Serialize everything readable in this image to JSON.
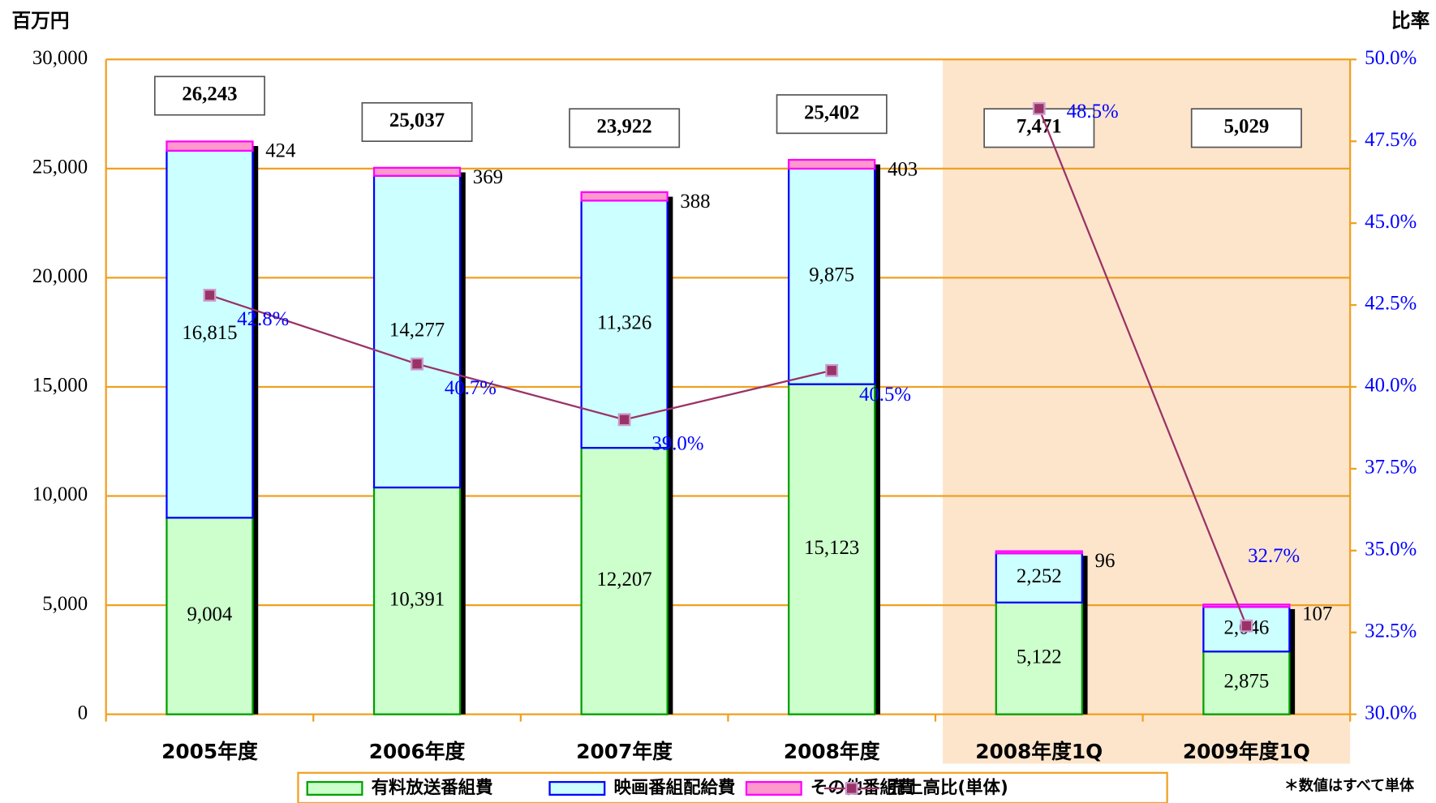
{
  "chart_data": {
    "type": "bar",
    "stacked": true,
    "y_label": "百万円",
    "y2_label": "比率",
    "note": "＊数値はすべて単体",
    "categories": [
      "2005年度",
      "2006年度",
      "2007年度",
      "2008年度",
      "2008年度1Q",
      "2009年度1Q"
    ],
    "highlight_from": 4,
    "series": [
      {
        "name": "有料放送番組費",
        "color": "#ccffcc",
        "edge": "#00a000",
        "values": [
          9004,
          10391,
          12207,
          15123,
          5122,
          2875
        ],
        "value_labels": [
          "9,004",
          "10,391",
          "12,207",
          "15,123",
          "5,122",
          "2,875"
        ]
      },
      {
        "name": "映画番組配給費",
        "color": "#ccffff",
        "edge": "#0000ff",
        "values": [
          16815,
          14277,
          11326,
          9875,
          2252,
          2046
        ],
        "value_labels": [
          "16,815",
          "14,277",
          "11,326",
          "9,875",
          "2,252",
          "2,046"
        ]
      },
      {
        "name": "その他番組費",
        "color": "#ff99cc",
        "edge": "#ff00ff",
        "values": [
          424,
          369,
          388,
          403,
          96,
          107
        ],
        "value_labels": [
          "424",
          "369",
          "388",
          "403",
          "96",
          "107"
        ]
      },
      {
        "name": "売上高比(単体)",
        "type": "line",
        "axis": "y2",
        "color": "#993366",
        "values": [
          42.8,
          40.7,
          39.0,
          40.5,
          48.5,
          32.7
        ],
        "value_labels": [
          "42.8%",
          "40.7%",
          "39.0%",
          "40.5%",
          "48.5%",
          "32.7%"
        ],
        "line_breaks": [
          4
        ]
      }
    ],
    "totals": [
      26243,
      25037,
      23922,
      25402,
      7471,
      5029
    ],
    "total_labels": [
      "26,243",
      "25,037",
      "23,922",
      "25,402",
      "7,471",
      "5,029"
    ],
    "ylim": [
      0,
      30000
    ],
    "yticks": [
      0,
      {
        "value": 5000,
        "label": "5,000"
      },
      {
        "value": 10000,
        "label": "10,000"
      },
      {
        "value": 15000,
        "label": "15,000"
      },
      {
        "value": 20000,
        "label": "20,000"
      },
      {
        "value": 25000,
        "label": "25,000"
      },
      {
        "value": 30000,
        "label": "30,000"
      }
    ],
    "y2lim": [
      30,
      50
    ],
    "y2ticks": [
      {
        "value": 30,
        "label": "30.0%"
      },
      {
        "value": 32.5,
        "label": "32.5%"
      },
      {
        "value": 35,
        "label": "35.0%"
      },
      {
        "value": 37.5,
        "label": "37.5%"
      },
      {
        "value": 40,
        "label": "40.0%"
      },
      {
        "value": 42.5,
        "label": "42.5%"
      },
      {
        "value": 45,
        "label": "45.0%"
      },
      {
        "value": 47.5,
        "label": "47.5%"
      },
      {
        "value": 50,
        "label": "50.0%"
      }
    ],
    "grid": true
  }
}
